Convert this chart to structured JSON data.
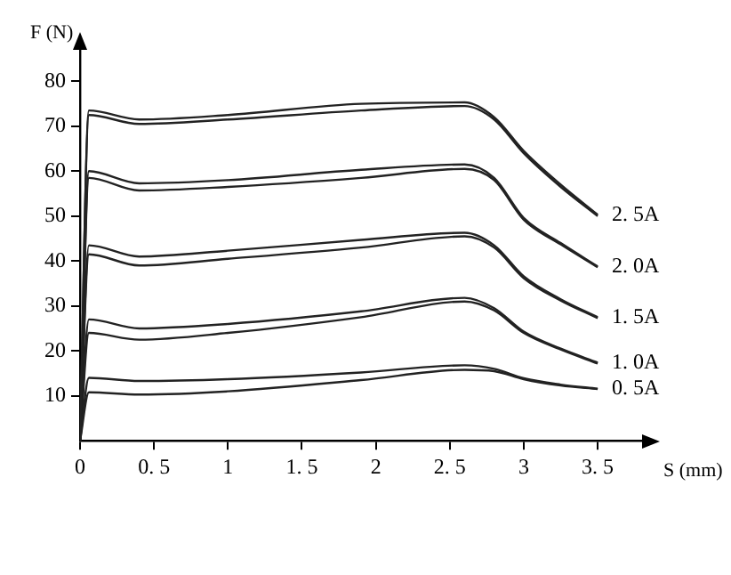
{
  "chart_data": {
    "type": "line",
    "xlabel": "S (mm)",
    "ylabel": "F (N)",
    "x": [
      0,
      0.06,
      0.4,
      1.0,
      1.9,
      2.6,
      2.8,
      3.0,
      3.25,
      3.5
    ],
    "xlim": [
      0,
      3.8
    ],
    "ylim": [
      0,
      87
    ],
    "xticks": [
      0,
      {
        "value": 0.5,
        "label": "0. 5"
      },
      1,
      {
        "value": 1.5,
        "label": "1. 5"
      },
      2,
      {
        "value": 2.5,
        "label": "2. 5"
      },
      3,
      {
        "value": 3.5,
        "label": "3. 5"
      }
    ],
    "yticks": [
      10,
      20,
      30,
      40,
      50,
      60,
      70,
      80
    ],
    "grid": false,
    "legend": false,
    "marker": "none",
    "line_style": "solid",
    "series": [
      {
        "name": "2. 5A",
        "color": "#222222",
        "values": [
          0,
          73.5,
          71.5,
          72.5,
          75,
          75.3,
          72,
          64.5,
          57,
          50.3
        ]
      },
      {
        "color": "#222222",
        "values": [
          0,
          72.5,
          70.5,
          71.5,
          73.5,
          74.5,
          71.5,
          64,
          56.5,
          50
        ]
      },
      {
        "name": "2. 0A",
        "color": "#222222",
        "values": [
          0,
          60,
          57.3,
          58,
          60.3,
          61.5,
          58.5,
          49.6,
          44,
          38.8
        ]
      },
      {
        "color": "#222222",
        "values": [
          0,
          58.5,
          55.7,
          56.5,
          58.5,
          60.5,
          58,
          49.2,
          43.7,
          38.6
        ]
      },
      {
        "name": "1. 5A",
        "color": "#222222",
        "values": [
          0,
          43.5,
          41,
          42.3,
          44.7,
          46.3,
          43.5,
          36.6,
          31.5,
          27.5
        ]
      },
      {
        "color": "#222222",
        "values": [
          0,
          41.5,
          39,
          40.5,
          43,
          45.5,
          43,
          36.2,
          31.2,
          27.3
        ]
      },
      {
        "name": "1. 0A",
        "color": "#222222",
        "values": [
          0,
          27,
          25,
          26,
          28.8,
          31.8,
          29.5,
          24.3,
          20.5,
          17.4
        ]
      },
      {
        "color": "#222222",
        "values": [
          0,
          24,
          22.5,
          24,
          27.5,
          31,
          29,
          24,
          20.3,
          17.2
        ]
      },
      {
        "name": "0. 5A",
        "color": "#222222",
        "values": [
          0,
          14,
          13.3,
          13.7,
          15.2,
          16.8,
          16,
          13.9,
          12.5,
          11.6
        ]
      },
      {
        "color": "#222222",
        "values": [
          0,
          10.8,
          10.3,
          11,
          13.5,
          15.8,
          15.5,
          13.7,
          12.3,
          11.5
        ]
      }
    ]
  }
}
